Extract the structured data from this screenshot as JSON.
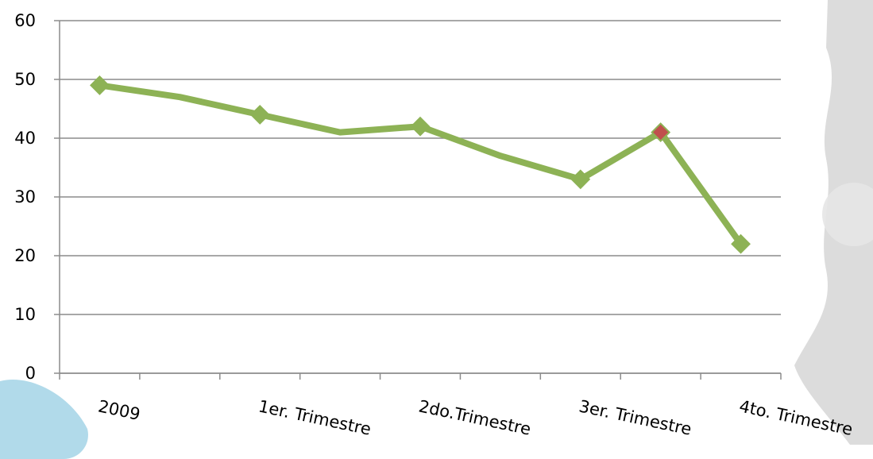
{
  "chart_data": {
    "type": "line",
    "title": "",
    "xlabel": "",
    "ylabel": "",
    "ylim": [
      0,
      60
    ],
    "yticks": [
      0,
      10,
      20,
      30,
      40,
      50,
      60
    ],
    "grid": true,
    "legend": "none",
    "categories": [
      "2009",
      "",
      "1er. Trimestre",
      "",
      "2do.Trimestre",
      "",
      "3er. Trimestre",
      "",
      "4to. Trimestre"
    ],
    "xtick_labels": [
      "2009",
      "1er. Trimestre",
      "2do.Trimestre",
      "3er. Trimestre",
      "4to. Trimestre"
    ],
    "series": [
      {
        "values": [
          49,
          47,
          44,
          41,
          42,
          37,
          33,
          41,
          22
        ],
        "markers": [
          true,
          false,
          true,
          false,
          true,
          false,
          true,
          true,
          true
        ],
        "color": "#8db255",
        "marker_color": "#8db255",
        "highlight_index": 7,
        "highlight_color": "#c0504d"
      }
    ]
  },
  "colors": {
    "grid": "#8c8c8c",
    "axis": "#8c8c8c",
    "decor_gray": "#d6d6d6",
    "decor_blue": "#a9d6e8"
  }
}
